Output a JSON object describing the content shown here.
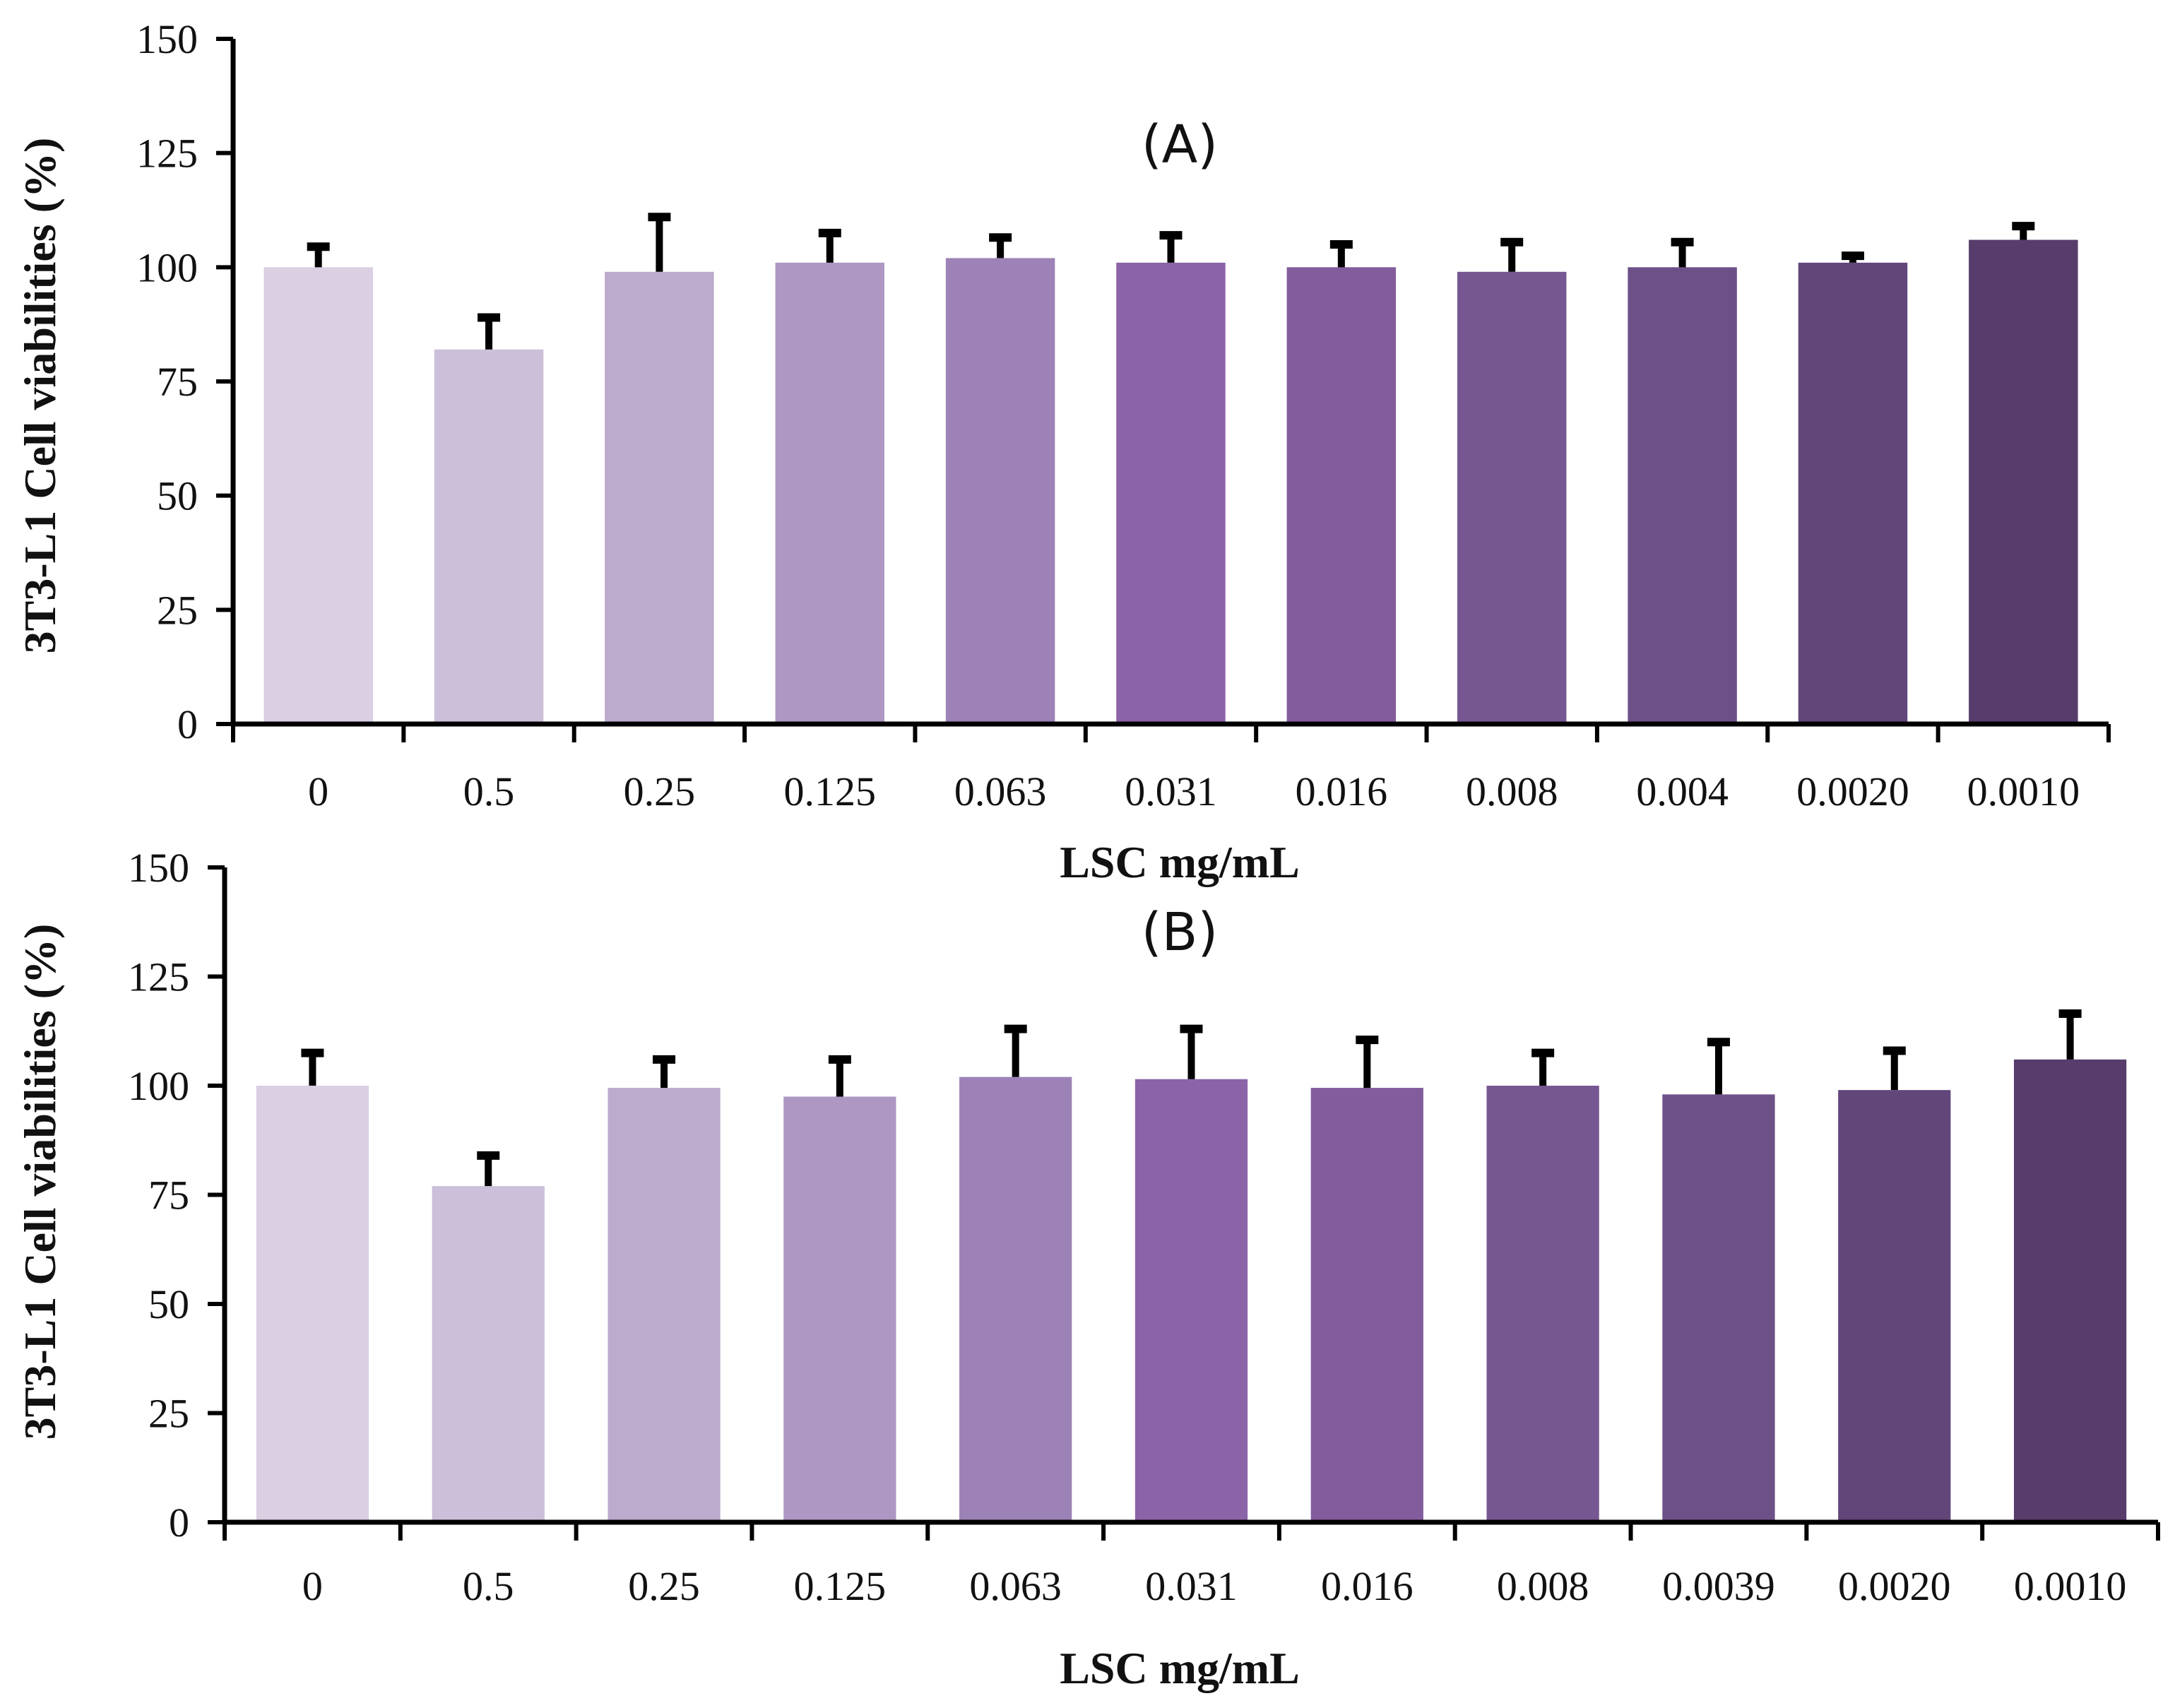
{
  "chart_data": [
    {
      "type": "bar",
      "title": "(A)",
      "xlabel": "LSC mg/mL",
      "ylabel": "3T3-L1 Cell viabilities (%)",
      "ylim": [
        0,
        150
      ],
      "yticks": [
        0,
        25,
        50,
        75,
        100,
        125,
        150
      ],
      "categories": [
        "0",
        "0.5",
        "0.25",
        "0.125",
        "0.063",
        "0.031",
        "0.016",
        "0.008",
        "0.004",
        "0.0020",
        "0.0010"
      ],
      "values": [
        100,
        82,
        99,
        101,
        102,
        101,
        100,
        99,
        100,
        101,
        106
      ],
      "errors": [
        4.5,
        7,
        12,
        6.5,
        4.5,
        6,
        5,
        6.5,
        5.5,
        1.5,
        3
      ],
      "colors": [
        "#dacfe3",
        "#cbbfd9",
        "#bcabcd",
        "#ae97c2",
        "#9c82b6",
        "#8b63a7",
        "#835c9d",
        "#775792",
        "#6e5089",
        "#62467a",
        "#573c6c"
      ]
    },
    {
      "type": "bar",
      "title": "(B)",
      "xlabel": "LSC mg/mL",
      "ylabel": "3T3-L1 Cell viabilities (%)",
      "ylim": [
        0,
        150
      ],
      "yticks": [
        0,
        25,
        50,
        75,
        100,
        125,
        150
      ],
      "categories": [
        "0",
        "0.5",
        "0.25",
        "0.125",
        "0.063",
        "0.031",
        "0.016",
        "0.008",
        "0.0039",
        "0.0020",
        "0.0010"
      ],
      "values": [
        100,
        77,
        99.5,
        97.5,
        102,
        101.5,
        99.5,
        100,
        98,
        99,
        106
      ],
      "errors": [
        7.5,
        7,
        6.5,
        8.5,
        11,
        11.5,
        11,
        7.5,
        12,
        9,
        10.5
      ],
      "colors": [
        "#dacfe3",
        "#cbbfd9",
        "#bcabcd",
        "#ae97c2",
        "#9c82b6",
        "#8b63a7",
        "#835c9d",
        "#775792",
        "#6e5089",
        "#62467a",
        "#573c6c"
      ]
    }
  ]
}
